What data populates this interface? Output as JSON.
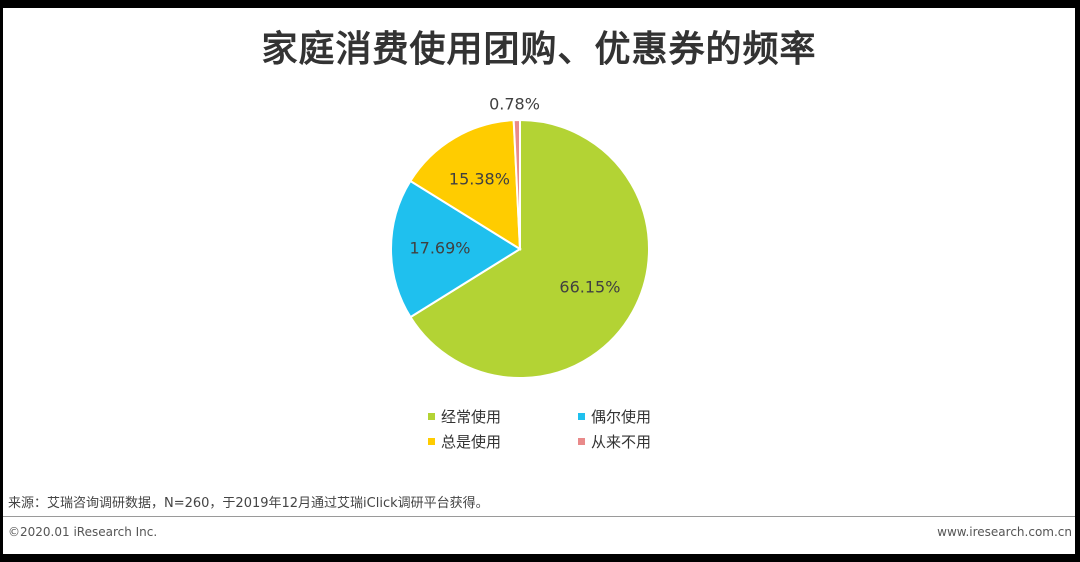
{
  "chart_data": {
    "type": "pie",
    "title": "家庭消费使用团购、优惠券的频率",
    "slices": [
      {
        "name": "经常使用",
        "value": 66.15,
        "label": "66.15%",
        "color": "#b3d334"
      },
      {
        "name": "偶尔使用",
        "value": 17.69,
        "label": "17.69%",
        "color": "#1fc0ee"
      },
      {
        "name": "总是使用",
        "value": 15.38,
        "label": "15.38%",
        "color": "#ffcc00"
      },
      {
        "name": "从来不用",
        "value": 0.78,
        "label": "0.78%",
        "color": "#e98a8a"
      }
    ],
    "legend_position": "bottom"
  },
  "source_text": "来源：艾瑞咨询调研数据，N=260，于2019年12月通过艾瑞iClick调研平台获得。",
  "footer": {
    "copyright": "©2020.01 iResearch Inc.",
    "website": "www.iresearch.com.cn"
  }
}
